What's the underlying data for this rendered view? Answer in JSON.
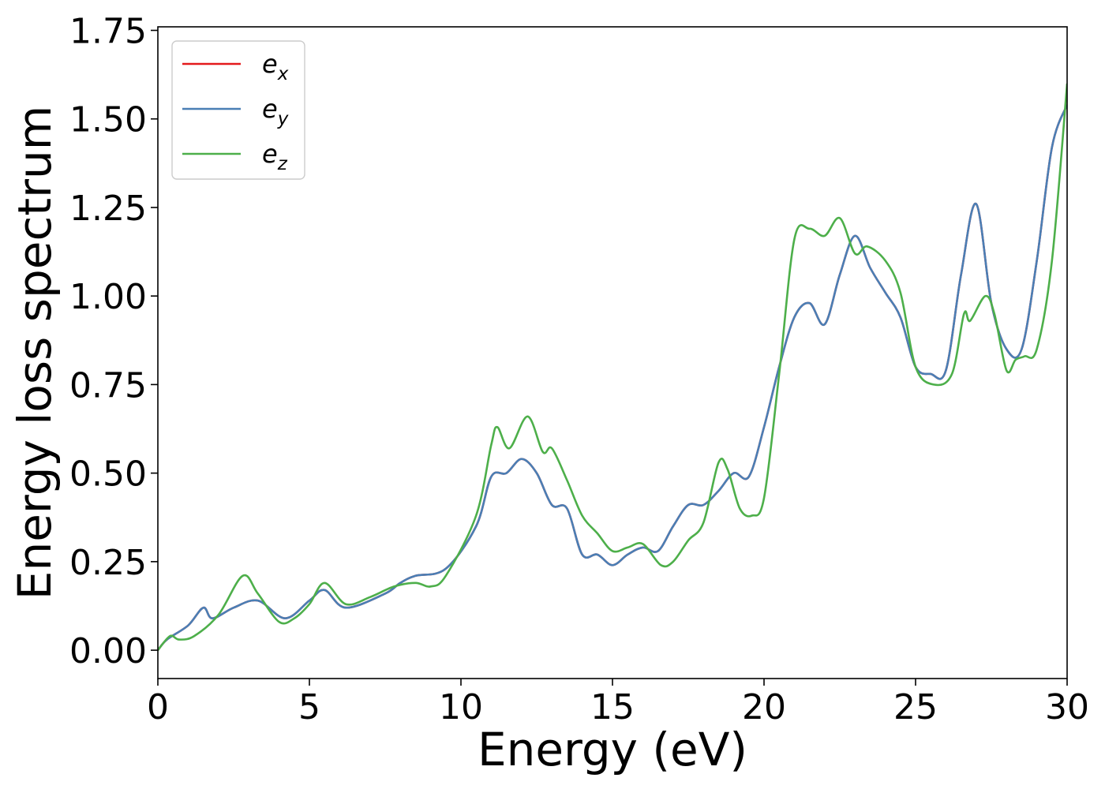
{
  "chart_data": {
    "type": "line",
    "title": "",
    "xlabel": "Energy (eV)",
    "ylabel": "Energy loss spectrum",
    "xlim": [
      0,
      30
    ],
    "ylim": [
      -0.08,
      1.76
    ],
    "xticks": [
      0,
      5,
      10,
      15,
      20,
      25,
      30
    ],
    "xtick_labels": [
      "0",
      "5",
      "10",
      "15",
      "20",
      "25",
      "30"
    ],
    "yticks": [
      0,
      0.25,
      0.5,
      0.75,
      1.0,
      1.25,
      1.5,
      1.75
    ],
    "ytick_labels": [
      "0.00",
      "0.25",
      "0.50",
      "0.75",
      "1.00",
      "1.25",
      "1.50",
      "1.75"
    ],
    "grid": false,
    "legend_position": "top-left",
    "series": [
      {
        "base": "e",
        "sub": "x",
        "color": "#e41a1c",
        "x": [
          0,
          0.3,
          1.0,
          1.5,
          1.8,
          2.5,
          3.3,
          4.2,
          5.0,
          5.5,
          6.2,
          7.5,
          8.0,
          8.5,
          9.5,
          10.5,
          11.0,
          11.5,
          12.0,
          12.5,
          13.0,
          13.5,
          14.0,
          14.5,
          15.0,
          15.5,
          16.0,
          16.5,
          17.0,
          17.5,
          18.0,
          18.5,
          19.0,
          19.5,
          20.0,
          20.5,
          21.0,
          21.5,
          22.0,
          22.5,
          23.0,
          23.5,
          24.0,
          24.5,
          25.0,
          25.5,
          26.0,
          26.5,
          27.0,
          27.5,
          28.0,
          28.5,
          29.0,
          29.5,
          30.0
        ],
        "y": [
          0,
          0.03,
          0.07,
          0.12,
          0.09,
          0.12,
          0.14,
          0.09,
          0.14,
          0.17,
          0.12,
          0.16,
          0.19,
          0.21,
          0.23,
          0.35,
          0.49,
          0.5,
          0.54,
          0.5,
          0.41,
          0.4,
          0.27,
          0.27,
          0.24,
          0.27,
          0.29,
          0.28,
          0.35,
          0.41,
          0.41,
          0.45,
          0.5,
          0.49,
          0.63,
          0.8,
          0.94,
          0.98,
          0.92,
          1.06,
          1.17,
          1.08,
          1.01,
          0.94,
          0.8,
          0.78,
          0.79,
          1.06,
          1.26,
          0.98,
          0.85,
          0.85,
          1.1,
          1.42,
          1.54
        ]
      },
      {
        "base": "e",
        "sub": "y",
        "color": "#4a7fb5",
        "x": [
          0,
          0.3,
          1.0,
          1.5,
          1.8,
          2.5,
          3.3,
          4.2,
          5.0,
          5.5,
          6.2,
          7.5,
          8.0,
          8.5,
          9.5,
          10.5,
          11.0,
          11.5,
          12.0,
          12.5,
          13.0,
          13.5,
          14.0,
          14.5,
          15.0,
          15.5,
          16.0,
          16.5,
          17.0,
          17.5,
          18.0,
          18.5,
          19.0,
          19.5,
          20.0,
          20.5,
          21.0,
          21.5,
          22.0,
          22.5,
          23.0,
          23.5,
          24.0,
          24.5,
          25.0,
          25.5,
          26.0,
          26.5,
          27.0,
          27.5,
          28.0,
          28.5,
          29.0,
          29.5,
          30.0
        ],
        "y": [
          0,
          0.03,
          0.07,
          0.12,
          0.09,
          0.12,
          0.14,
          0.09,
          0.14,
          0.17,
          0.12,
          0.16,
          0.19,
          0.21,
          0.23,
          0.35,
          0.49,
          0.5,
          0.54,
          0.5,
          0.41,
          0.4,
          0.27,
          0.27,
          0.24,
          0.27,
          0.29,
          0.28,
          0.35,
          0.41,
          0.41,
          0.45,
          0.5,
          0.49,
          0.63,
          0.8,
          0.94,
          0.98,
          0.92,
          1.06,
          1.17,
          1.08,
          1.01,
          0.94,
          0.8,
          0.78,
          0.79,
          1.06,
          1.26,
          0.98,
          0.85,
          0.85,
          1.1,
          1.42,
          1.54
        ]
      },
      {
        "base": "e",
        "sub": "z",
        "color": "#4daf4a",
        "x": [
          0,
          0.4,
          0.7,
          1.2,
          2.0,
          2.8,
          3.3,
          4.0,
          4.5,
          5.0,
          5.5,
          6.2,
          7.0,
          7.8,
          8.5,
          9.0,
          9.5,
          10.5,
          11.0,
          11.2,
          11.6,
          12.2,
          12.7,
          13.0,
          13.5,
          14.0,
          14.5,
          15.0,
          15.5,
          16.0,
          16.6,
          17.0,
          17.5,
          18.0,
          18.5,
          18.8,
          19.2,
          19.6,
          20.0,
          20.5,
          21.0,
          21.5,
          22.0,
          22.5,
          23.0,
          23.4,
          24.0,
          24.5,
          25.0,
          25.6,
          26.2,
          26.6,
          26.8,
          27.3,
          27.6,
          28.0,
          28.3,
          28.6,
          29.0,
          29.5,
          30.0
        ],
        "y": [
          0,
          0.04,
          0.03,
          0.04,
          0.1,
          0.21,
          0.16,
          0.08,
          0.09,
          0.13,
          0.19,
          0.13,
          0.15,
          0.18,
          0.19,
          0.18,
          0.21,
          0.38,
          0.58,
          0.63,
          0.57,
          0.66,
          0.56,
          0.57,
          0.48,
          0.38,
          0.33,
          0.28,
          0.29,
          0.3,
          0.24,
          0.25,
          0.31,
          0.36,
          0.53,
          0.51,
          0.4,
          0.38,
          0.43,
          0.78,
          1.16,
          1.19,
          1.17,
          1.22,
          1.12,
          1.14,
          1.1,
          1.01,
          0.8,
          0.75,
          0.78,
          0.95,
          0.93,
          1.0,
          0.95,
          0.79,
          0.82,
          0.83,
          0.85,
          1.1,
          1.6
        ]
      }
    ]
  }
}
